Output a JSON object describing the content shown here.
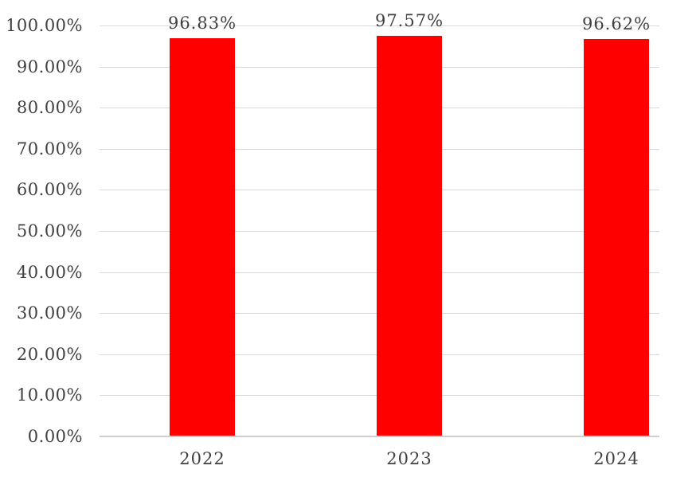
{
  "chart_data": {
    "type": "bar",
    "categories": [
      "2022",
      "2023",
      "2024"
    ],
    "values": [
      96.83,
      97.57,
      96.62
    ],
    "value_labels": [
      "96.83%",
      "97.57%",
      "96.62%"
    ],
    "y_tick_labels": [
      "0.00%",
      "10.00%",
      "20.00%",
      "30.00%",
      "40.00%",
      "50.00%",
      "60.00%",
      "70.00%",
      "80.00%",
      "90.00%",
      "100.00%"
    ],
    "ylim": [
      0,
      100
    ],
    "y_tick_step": 10,
    "xlabel": "",
    "ylabel": "",
    "grid": "horizontal",
    "legend": "none",
    "colors": {
      "bar": "#FF0000",
      "gridline": "#D9D9D9",
      "axis_line": "#CFCFCF",
      "label_text": "#404040",
      "background": "#FFFFFF"
    }
  }
}
